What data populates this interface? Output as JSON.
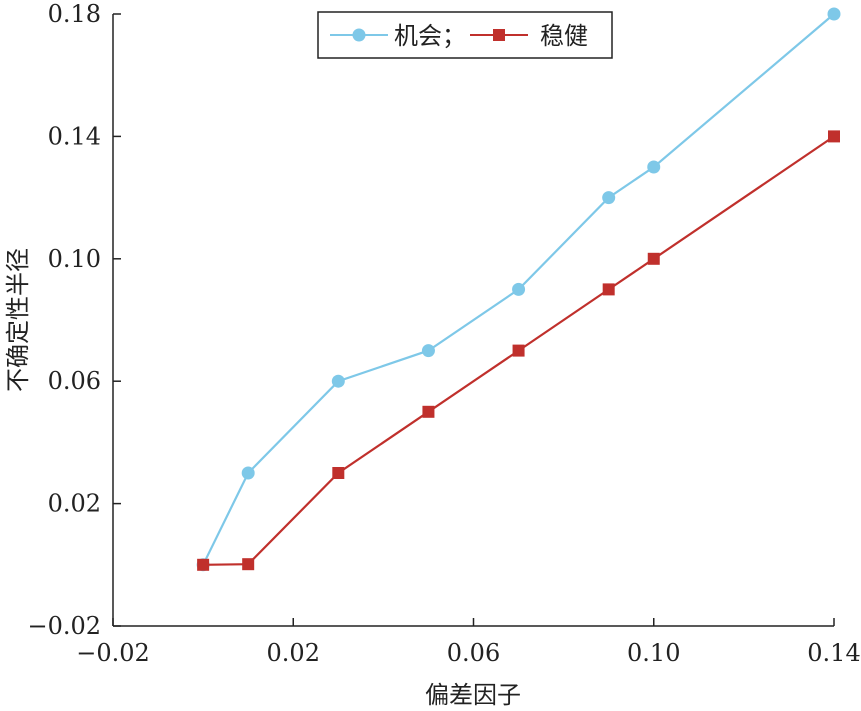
{
  "chart_data": {
    "type": "line",
    "title": "",
    "xlabel": "偏差因子",
    "ylabel": "不确定性半径",
    "xlim": [
      -0.02,
      0.14
    ],
    "ylim": [
      -0.02,
      0.18
    ],
    "x_ticks": [
      -0.02,
      0.02,
      0.06,
      0.1,
      0.14
    ],
    "x_tick_labels": [
      "−0.02",
      "0.02",
      "0.06",
      "0.10",
      "0.14"
    ],
    "y_ticks": [
      -0.02,
      0.02,
      0.06,
      0.1,
      0.14,
      0.18
    ],
    "y_tick_labels": [
      "−0.02",
      "0.02",
      "0.06",
      "0.10",
      "0.14",
      "0.18"
    ],
    "grid": false,
    "legend_position": "top-center",
    "series": [
      {
        "name": "机会",
        "color": "#7ec8e8",
        "marker": "circle",
        "points": [
          [
            0.0,
            0.0
          ],
          [
            0.01,
            0.03
          ],
          [
            0.03,
            0.06
          ],
          [
            0.05,
            0.07
          ],
          [
            0.07,
            0.09
          ],
          [
            0.09,
            0.12
          ],
          [
            0.1,
            0.13
          ],
          [
            0.14,
            0.18
          ]
        ]
      },
      {
        "name": "稳健",
        "color": "#c0302c",
        "marker": "square",
        "points": [
          [
            0.0,
            0.0
          ],
          [
            0.01,
            0.0002
          ],
          [
            0.03,
            0.03
          ],
          [
            0.05,
            0.05
          ],
          [
            0.07,
            0.07
          ],
          [
            0.09,
            0.09
          ],
          [
            0.1,
            0.1
          ],
          [
            0.14,
            0.14
          ]
        ]
      }
    ],
    "legend_labels": [
      "机会；",
      "稳健"
    ]
  }
}
